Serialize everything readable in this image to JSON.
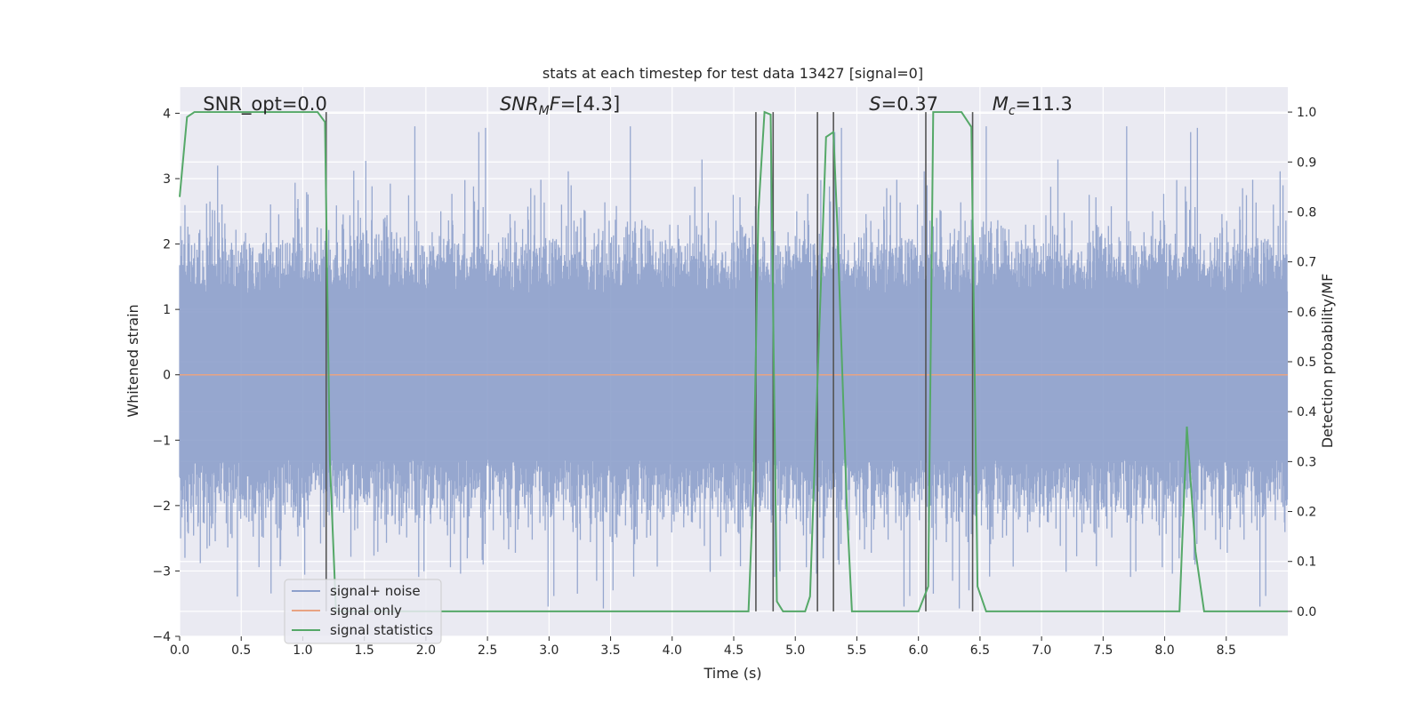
{
  "chart_data": {
    "type": "line",
    "title": "stats at each timestep for test data 13427 [signal=0]",
    "xlabel": "Time (s)",
    "ylabel": "Whitened strain",
    "ylabel_right": "Detection probability/MF",
    "xlim": [
      0,
      9.0
    ],
    "ylim": [
      -4.0,
      4.4
    ],
    "ylim_right": [
      -0.05,
      1.05
    ],
    "xticks": [
      "0.0",
      "0.5",
      "1.0",
      "1.5",
      "2.0",
      "2.5",
      "3.0",
      "3.5",
      "4.0",
      "4.5",
      "5.0",
      "5.5",
      "6.0",
      "6.5",
      "7.0",
      "7.5",
      "8.0",
      "8.5"
    ],
    "yticks": [
      "−4",
      "−3",
      "−2",
      "−1",
      "0",
      "1",
      "2",
      "3",
      "4"
    ],
    "yticks_right": [
      "0.0",
      "0.1",
      "0.2",
      "0.3",
      "0.4",
      "0.5",
      "0.6",
      "0.7",
      "0.8",
      "0.9",
      "1.0"
    ],
    "grid": true,
    "legend_position": "lower-left",
    "annotations": [
      {
        "text": "SNR_opt=0.0",
        "x": 0.19
      },
      {
        "text_parts": [
          {
            "t": "SNR",
            "style": "italic"
          },
          {
            "t": "M",
            "style": "italic-sub"
          },
          {
            "t": "F",
            "style": "italic"
          },
          {
            "t": "=[4.3]",
            "style": "normal"
          }
        ],
        "x": 2.6
      },
      {
        "text_parts": [
          {
            "t": "S",
            "style": "italic"
          },
          {
            "t": "=0.37",
            "style": "normal"
          }
        ],
        "x": 5.6
      },
      {
        "text_parts": [
          {
            "t": "M",
            "style": "italic"
          },
          {
            "t": "c",
            "style": "italic-sub"
          },
          {
            "t": "=11.3",
            "style": "normal"
          }
        ],
        "x": 6.6
      }
    ],
    "series": [
      {
        "name": "signal+ noise",
        "color": "#8da0cb",
        "kind": "noise",
        "sample_rate": 256,
        "typical_amplitude": 1.6,
        "max_peak": 3.8
      },
      {
        "name": "signal only",
        "color": "#e8a383",
        "kind": "constant",
        "y": 0.0
      },
      {
        "name": "signal statistics",
        "color": "#55a868",
        "axis": "right",
        "x": [
          0.0,
          0.06,
          0.12,
          0.5,
          1.0,
          1.12,
          1.18,
          1.22,
          1.27,
          1.5,
          2.0,
          3.0,
          4.0,
          4.5,
          4.62,
          4.66,
          4.7,
          4.75,
          4.8,
          4.82,
          4.85,
          4.9,
          5.0,
          5.08,
          5.12,
          5.2,
          5.25,
          5.31,
          5.34,
          5.42,
          5.46,
          5.55,
          6.0,
          6.08,
          6.12,
          6.2,
          6.35,
          6.43,
          6.48,
          6.55,
          6.6,
          7.0,
          7.5,
          8.0,
          8.12,
          8.18,
          8.25,
          8.32,
          8.5,
          9.0
        ],
        "y": [
          0.83,
          0.99,
          1.0,
          1.0,
          1.0,
          1.0,
          0.98,
          0.3,
          0.0,
          0.0,
          0.0,
          0.0,
          0.0,
          0.0,
          0.0,
          0.25,
          0.8,
          1.0,
          0.995,
          0.6,
          0.02,
          0.0,
          0.0,
          0.0,
          0.03,
          0.6,
          0.95,
          0.96,
          0.78,
          0.2,
          0.0,
          0.0,
          0.0,
          0.05,
          1.0,
          1.0,
          1.0,
          0.97,
          0.05,
          0.0,
          0.0,
          0.0,
          0.0,
          0.0,
          0.0,
          0.37,
          0.12,
          0.0,
          0.0,
          0.0
        ]
      }
    ],
    "vlines_x": [
      1.19,
      4.68,
      4.82,
      5.18,
      5.31,
      6.06,
      6.44
    ],
    "vlines_color": "#555555"
  }
}
